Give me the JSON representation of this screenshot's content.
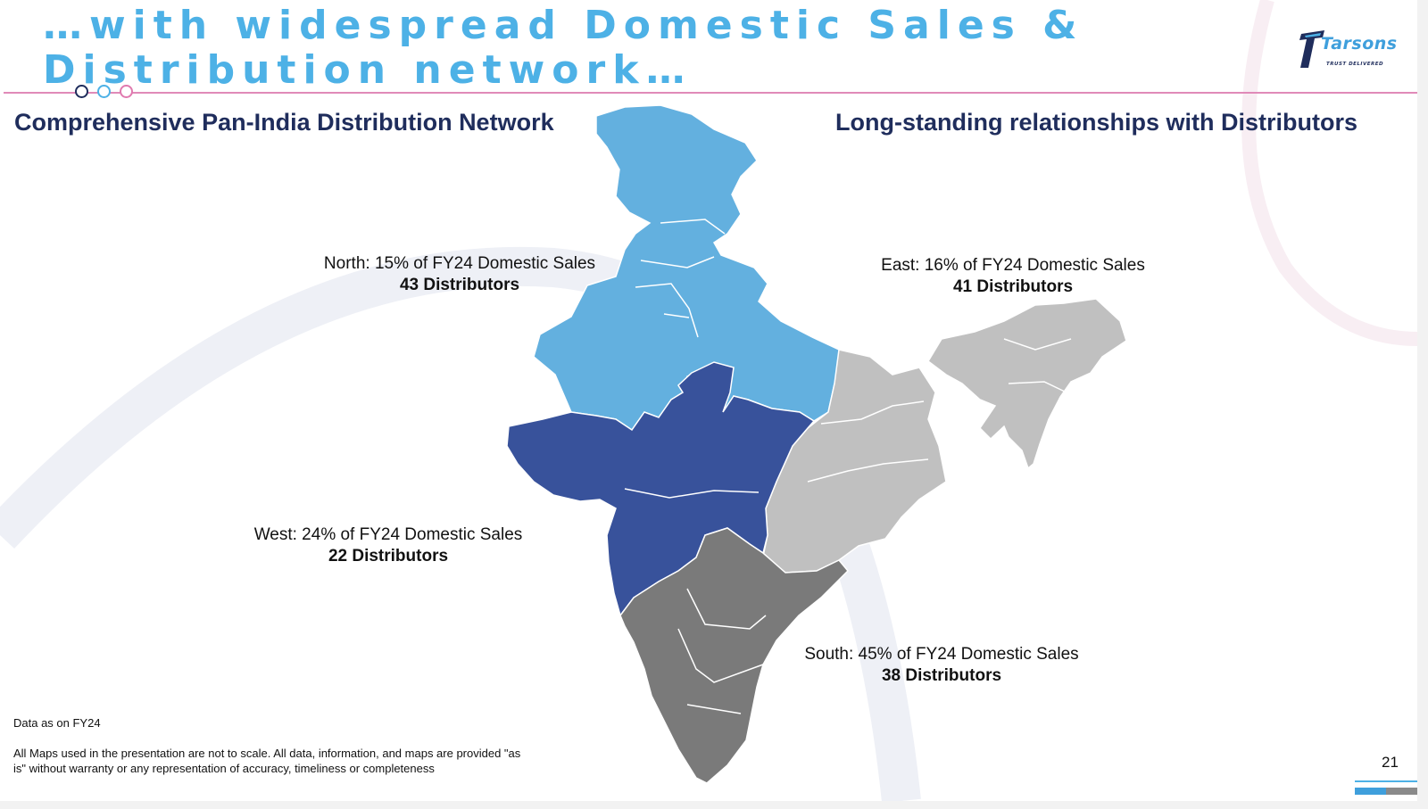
{
  "title": "…with widespread Domestic Sales & Distribution network…",
  "logo": {
    "name": "Tarsons",
    "tagline": "TRUST DELIVERED"
  },
  "headings": {
    "left": "Comprehensive Pan-India Distribution Network",
    "right": "Long-standing relationships with Distributors"
  },
  "regions": {
    "north": {
      "sales": "North: 15% of FY24 Domestic Sales",
      "distributors": "43 Distributors",
      "color": "#63b0df"
    },
    "east": {
      "sales": "East: 16% of FY24 Domestic Sales",
      "distributors": "41 Distributors",
      "color": "#c0c0c0"
    },
    "west": {
      "sales": "West: 24% of FY24 Domestic Sales",
      "distributors": "22 Distributors",
      "color": "#38529b"
    },
    "south": {
      "sales": "South: 45% of FY24 Domestic Sales",
      "distributors": "38 Distributors",
      "color": "#7a7a7a"
    }
  },
  "notes": {
    "data_as_of": "Data as on FY24",
    "disclaimer": "All Maps used in the presentation are not to scale. All data, information, and maps are provided \"as is\" without warranty or any representation of accuracy, timeliness or completeness"
  },
  "page_number": "21",
  "colors": {
    "title": "#4db1e6",
    "heading": "#1f2d5c",
    "rule": "#e08ab8"
  }
}
